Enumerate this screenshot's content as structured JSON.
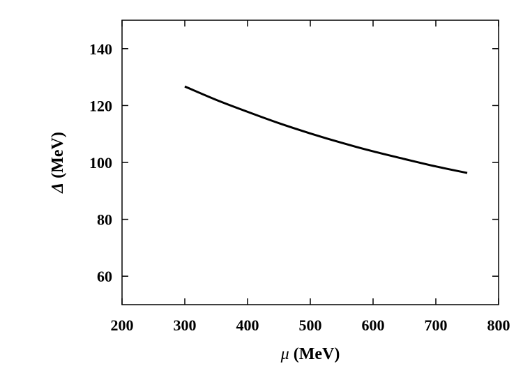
{
  "chart_data": {
    "type": "line",
    "xlabel": {
      "symbol": "μ",
      "unit": "(MeV)"
    },
    "ylabel": {
      "symbol": "Δ",
      "unit": "(MeV)"
    },
    "xlim": [
      200,
      800
    ],
    "ylim": [
      50,
      150
    ],
    "xticks": [
      200,
      300,
      400,
      500,
      600,
      700,
      800
    ],
    "yticks": [
      60,
      80,
      100,
      120,
      140
    ],
    "grid": false,
    "series": [
      {
        "x": [
          300,
          350,
          400,
          450,
          500,
          550,
          600,
          650,
          700,
          750
        ],
        "y": [
          126.7,
          122.0,
          117.8,
          113.8,
          110.2,
          106.9,
          103.9,
          101.2,
          98.6,
          96.3
        ]
      }
    ]
  }
}
